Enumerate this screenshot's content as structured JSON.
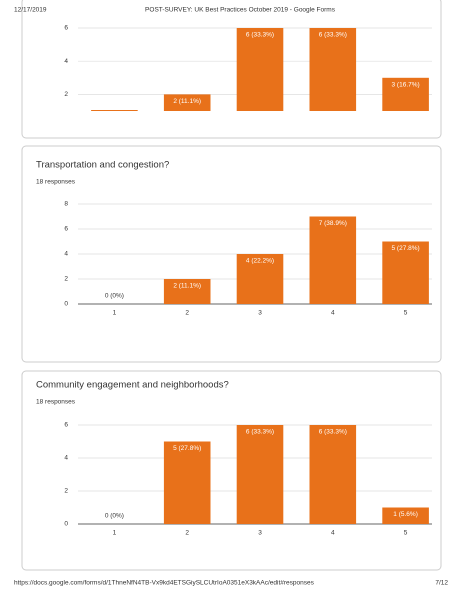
{
  "header": {
    "date": "12/17/2019",
    "title": "POST-SURVEY: UK Best Practices October 2019 - Google Forms"
  },
  "footer": {
    "url": "https://docs.google.com/forms/d/1ThneNfN4TB-Vx9kd4ETSGiySLCUtrIoA0351eX3kAAc/edit#responses",
    "page": "7/12"
  },
  "chart_data": [
    {
      "type": "bar",
      "values": [
        1,
        2,
        6,
        6,
        3
      ],
      "value_labels": [
        null,
        "2 (11.1%)",
        "6 (33.3%)",
        "6 (33.3%)",
        "3 (16.7%)"
      ],
      "color": "#e8711a",
      "ylim": [
        1,
        6
      ],
      "yticks": [
        2,
        4,
        6
      ],
      "grid": true
    },
    {
      "type": "bar",
      "title": "Transportation and congestion?",
      "subtitle": "18 responses",
      "categories": [
        "1",
        "2",
        "3",
        "4",
        "5"
      ],
      "values": [
        0,
        2,
        4,
        7,
        5
      ],
      "value_labels": [
        "0 (0%)",
        "2 (11.1%)",
        "4 (22.2%)",
        "7 (38.9%)",
        "5 (27.8%)"
      ],
      "color": "#e8711a",
      "ylim": [
        0,
        8
      ],
      "yticks": [
        0,
        2,
        4,
        6,
        8
      ],
      "grid": true
    },
    {
      "type": "bar",
      "title": "Community engagement and neighborhoods?",
      "subtitle": "18 responses",
      "categories": [
        "1",
        "2",
        "3",
        "4",
        "5"
      ],
      "values": [
        0,
        5,
        6,
        6,
        1
      ],
      "value_labels": [
        "0 (0%)",
        "5 (27.8%)",
        "6 (33.3%)",
        "6 (33.3%)",
        "1 (5.6%)"
      ],
      "color": "#e8711a",
      "ylim": [
        0,
        6
      ],
      "yticks": [
        0,
        2,
        4,
        6
      ],
      "grid": true
    }
  ]
}
